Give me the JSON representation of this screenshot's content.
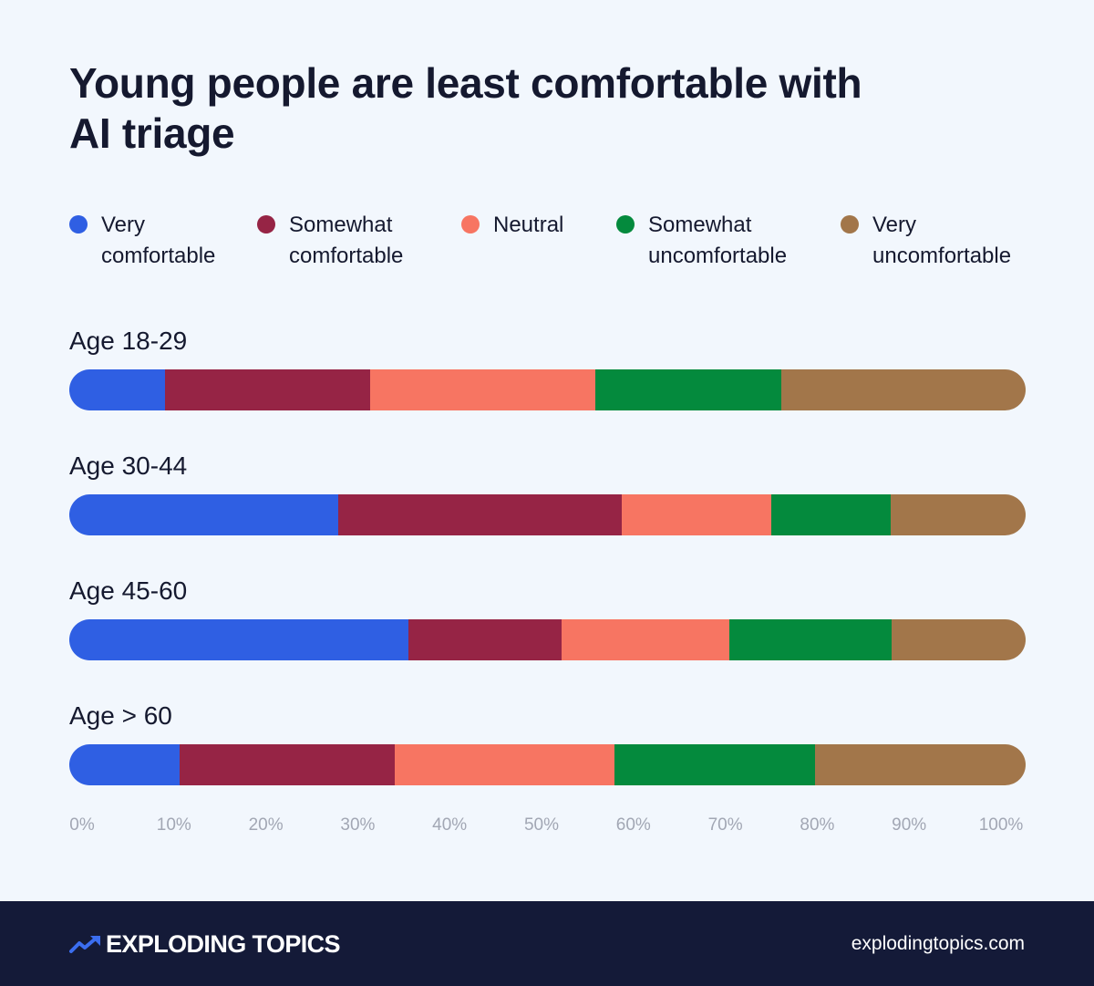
{
  "title": "Young people are least comfortable with AI triage",
  "legend": [
    {
      "label": "Very\ncomfortable",
      "color": "#2f5fe3"
    },
    {
      "label": "Somewhat\ncomfortable",
      "color": "#962445"
    },
    {
      "label": "Neutral",
      "color": "#f77562"
    },
    {
      "label": "Somewhat\nuncomfortable",
      "color": "#048a3d"
    },
    {
      "label": "Very\nuncomfortable",
      "color": "#a2764a"
    }
  ],
  "chart_data": {
    "type": "bar",
    "orientation": "horizontal",
    "stacked": true,
    "normalized": true,
    "categories": [
      "Age 18-29",
      "Age 30-44",
      "Age 45-60",
      "Age > 60"
    ],
    "series": [
      {
        "name": "Very comfortable",
        "color": "#2f5fe3",
        "values": [
          10,
          28,
          35.5,
          11.5
        ]
      },
      {
        "name": "Somewhat comfortable",
        "color": "#962445",
        "values": [
          21.5,
          29.5,
          16,
          22.5
        ]
      },
      {
        "name": "Neutral",
        "color": "#f77562",
        "values": [
          23.5,
          15.5,
          17.5,
          23
        ]
      },
      {
        "name": "Somewhat uncomfortable",
        "color": "#048a3d",
        "values": [
          19.5,
          12.5,
          17,
          21
        ]
      },
      {
        "name": "Very uncomfortable",
        "color": "#a2764a",
        "values": [
          25.5,
          14,
          14,
          22
        ]
      }
    ],
    "xlim": [
      0,
      100
    ],
    "xticks": [
      "0%",
      "10%",
      "20%",
      "30%",
      "40%",
      "50%",
      "60%",
      "70%",
      "80%",
      "90%",
      "100%"
    ],
    "grid": false,
    "legend_position": "top"
  },
  "footer": {
    "brand": "EXPLODING TOPICS",
    "website": "explodingtopics.com"
  }
}
